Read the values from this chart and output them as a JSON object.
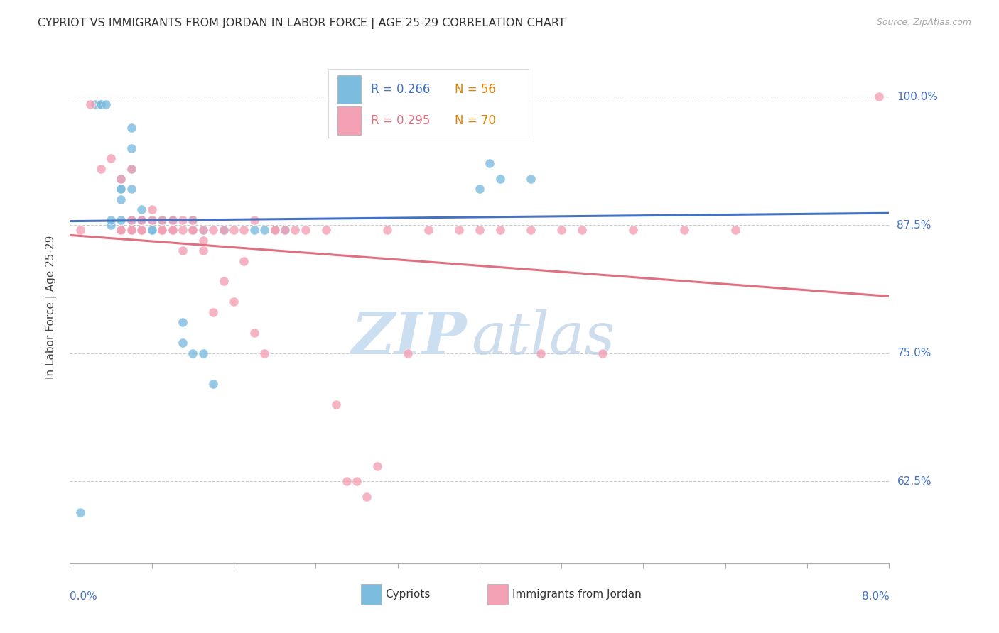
{
  "title": "CYPRIOT VS IMMIGRANTS FROM JORDAN IN LABOR FORCE | AGE 25-29 CORRELATION CHART",
  "source_text": "Source: ZipAtlas.com",
  "ylabel": "In Labor Force | Age 25-29",
  "legend_label1": "Cypriots",
  "legend_label2": "Immigrants from Jordan",
  "r1": 0.266,
  "n1": 56,
  "r2": 0.295,
  "n2": 70,
  "xmin": 0.0,
  "xmax": 0.08,
  "ymin": 0.545,
  "ymax": 1.045,
  "yticks": [
    0.625,
    0.75,
    0.875,
    1.0
  ],
  "ytick_labels": [
    "62.5%",
    "75.0%",
    "87.5%",
    "100.0%"
  ],
  "color_cypriot": "#7bbcdf",
  "color_jordan": "#f4a0b5",
  "color_cypriot_line": "#4472c4",
  "color_jordan_line": "#e07080",
  "color_axis_labels": "#4472c4",
  "color_n_labels": "#e08000",
  "background_color": "#ffffff",
  "watermark_color": "#dce8f5",
  "cypriot_x": [
    0.001,
    0.0025,
    0.003,
    0.003,
    0.003,
    0.0035,
    0.004,
    0.004,
    0.005,
    0.005,
    0.005,
    0.005,
    0.005,
    0.005,
    0.006,
    0.006,
    0.006,
    0.006,
    0.006,
    0.006,
    0.007,
    0.007,
    0.007,
    0.007,
    0.007,
    0.007,
    0.008,
    0.008,
    0.008,
    0.009,
    0.009,
    0.009,
    0.009,
    0.01,
    0.01,
    0.01,
    0.01,
    0.01,
    0.011,
    0.011,
    0.012,
    0.012,
    0.012,
    0.013,
    0.013,
    0.014,
    0.015,
    0.015,
    0.018,
    0.019,
    0.02,
    0.021,
    0.04,
    0.041,
    0.042,
    0.045
  ],
  "cypriot_y": [
    0.595,
    0.993,
    0.993,
    0.993,
    0.993,
    0.993,
    0.875,
    0.88,
    0.87,
    0.9,
    0.91,
    0.91,
    0.88,
    0.92,
    0.91,
    0.93,
    0.95,
    0.97,
    0.88,
    0.87,
    0.88,
    0.88,
    0.89,
    0.87,
    0.87,
    0.88,
    0.87,
    0.88,
    0.87,
    0.87,
    0.88,
    0.88,
    0.87,
    0.87,
    0.88,
    0.88,
    0.87,
    0.88,
    0.78,
    0.76,
    0.75,
    0.88,
    0.87,
    0.87,
    0.75,
    0.72,
    0.87,
    0.87,
    0.87,
    0.87,
    0.87,
    0.87,
    0.91,
    0.935,
    0.92,
    0.92
  ],
  "jordan_x": [
    0.001,
    0.002,
    0.003,
    0.004,
    0.005,
    0.005,
    0.005,
    0.006,
    0.006,
    0.006,
    0.006,
    0.007,
    0.007,
    0.007,
    0.008,
    0.008,
    0.009,
    0.009,
    0.009,
    0.009,
    0.01,
    0.01,
    0.01,
    0.01,
    0.011,
    0.011,
    0.011,
    0.012,
    0.012,
    0.012,
    0.013,
    0.013,
    0.013,
    0.014,
    0.014,
    0.015,
    0.015,
    0.016,
    0.016,
    0.017,
    0.017,
    0.018,
    0.018,
    0.019,
    0.02,
    0.02,
    0.021,
    0.022,
    0.023,
    0.025,
    0.026,
    0.027,
    0.028,
    0.029,
    0.03,
    0.031,
    0.033,
    0.035,
    0.038,
    0.04,
    0.042,
    0.045,
    0.046,
    0.048,
    0.05,
    0.052,
    0.055,
    0.06,
    0.065,
    0.079
  ],
  "jordan_y": [
    0.87,
    0.993,
    0.93,
    0.94,
    0.87,
    0.92,
    0.87,
    0.87,
    0.88,
    0.87,
    0.93,
    0.87,
    0.88,
    0.87,
    0.88,
    0.89,
    0.87,
    0.88,
    0.87,
    0.87,
    0.87,
    0.88,
    0.87,
    0.87,
    0.88,
    0.85,
    0.87,
    0.87,
    0.88,
    0.87,
    0.87,
    0.85,
    0.86,
    0.87,
    0.79,
    0.87,
    0.82,
    0.8,
    0.87,
    0.87,
    0.84,
    0.77,
    0.88,
    0.75,
    0.87,
    0.87,
    0.87,
    0.87,
    0.87,
    0.87,
    0.7,
    0.625,
    0.625,
    0.61,
    0.64,
    0.87,
    0.75,
    0.87,
    0.87,
    0.87,
    0.87,
    0.87,
    0.75,
    0.87,
    0.87,
    0.75,
    0.87,
    0.87,
    0.87,
    1.0
  ]
}
